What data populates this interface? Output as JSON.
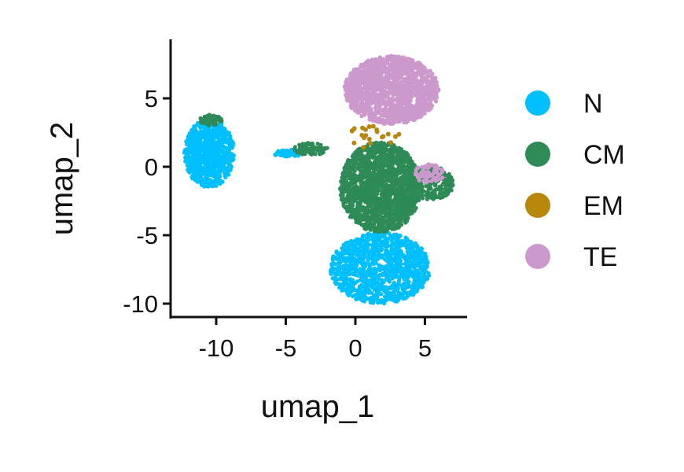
{
  "chart_data": {
    "type": "scatter",
    "xlabel": "umap_1",
    "ylabel": "umap_2",
    "xlim": [
      -13.5,
      8
    ],
    "ylim": [
      -11,
      9
    ],
    "xticks": [
      -10,
      -5,
      0,
      5
    ],
    "yticks": [
      -10,
      -5,
      0,
      5
    ],
    "xtick_labels": [
      "-10",
      "-5",
      "0",
      "5"
    ],
    "ytick_labels": [
      "-10",
      "-5",
      "0",
      "5"
    ],
    "grid": false,
    "legend_position": "right",
    "series": [
      {
        "name": "N",
        "color": "#00BFFF"
      },
      {
        "name": "CM",
        "color": "#2E8B57"
      },
      {
        "name": "EM",
        "color": "#B8860B"
      },
      {
        "name": "TE",
        "color": "#CC99CC"
      }
    ],
    "clusters": [
      {
        "series": "N",
        "cx": -10.5,
        "cy": 1.0,
        "rx": 1.8,
        "ry": 2.5,
        "n": 900
      },
      {
        "series": "N",
        "cx": 1.8,
        "cy": -7.4,
        "rx": 3.6,
        "ry": 2.6,
        "n": 1100
      },
      {
        "series": "N",
        "cx": -4.8,
        "cy": 1.0,
        "rx": 1.2,
        "ry": 0.25,
        "n": 60
      },
      {
        "series": "CM",
        "cx": 1.8,
        "cy": -1.5,
        "rx": 2.9,
        "ry": 3.3,
        "n": 1700
      },
      {
        "series": "CM",
        "cx": 5.4,
        "cy": -1.2,
        "rx": 1.7,
        "ry": 1.2,
        "n": 260
      },
      {
        "series": "CM",
        "cx": -3.2,
        "cy": 1.3,
        "rx": 1.2,
        "ry": 0.45,
        "n": 90
      },
      {
        "series": "CM",
        "cx": -10.4,
        "cy": 3.4,
        "rx": 0.8,
        "ry": 0.4,
        "n": 60
      },
      {
        "series": "TE",
        "cx": 2.6,
        "cy": 5.6,
        "rx": 3.4,
        "ry": 2.5,
        "n": 1500
      },
      {
        "series": "TE",
        "cx": 5.3,
        "cy": -0.5,
        "rx": 1.1,
        "ry": 0.7,
        "n": 80
      },
      {
        "series": "EM",
        "cx": 1.2,
        "cy": 2.2,
        "rx": 2.0,
        "ry": 0.9,
        "n": 22
      }
    ]
  }
}
